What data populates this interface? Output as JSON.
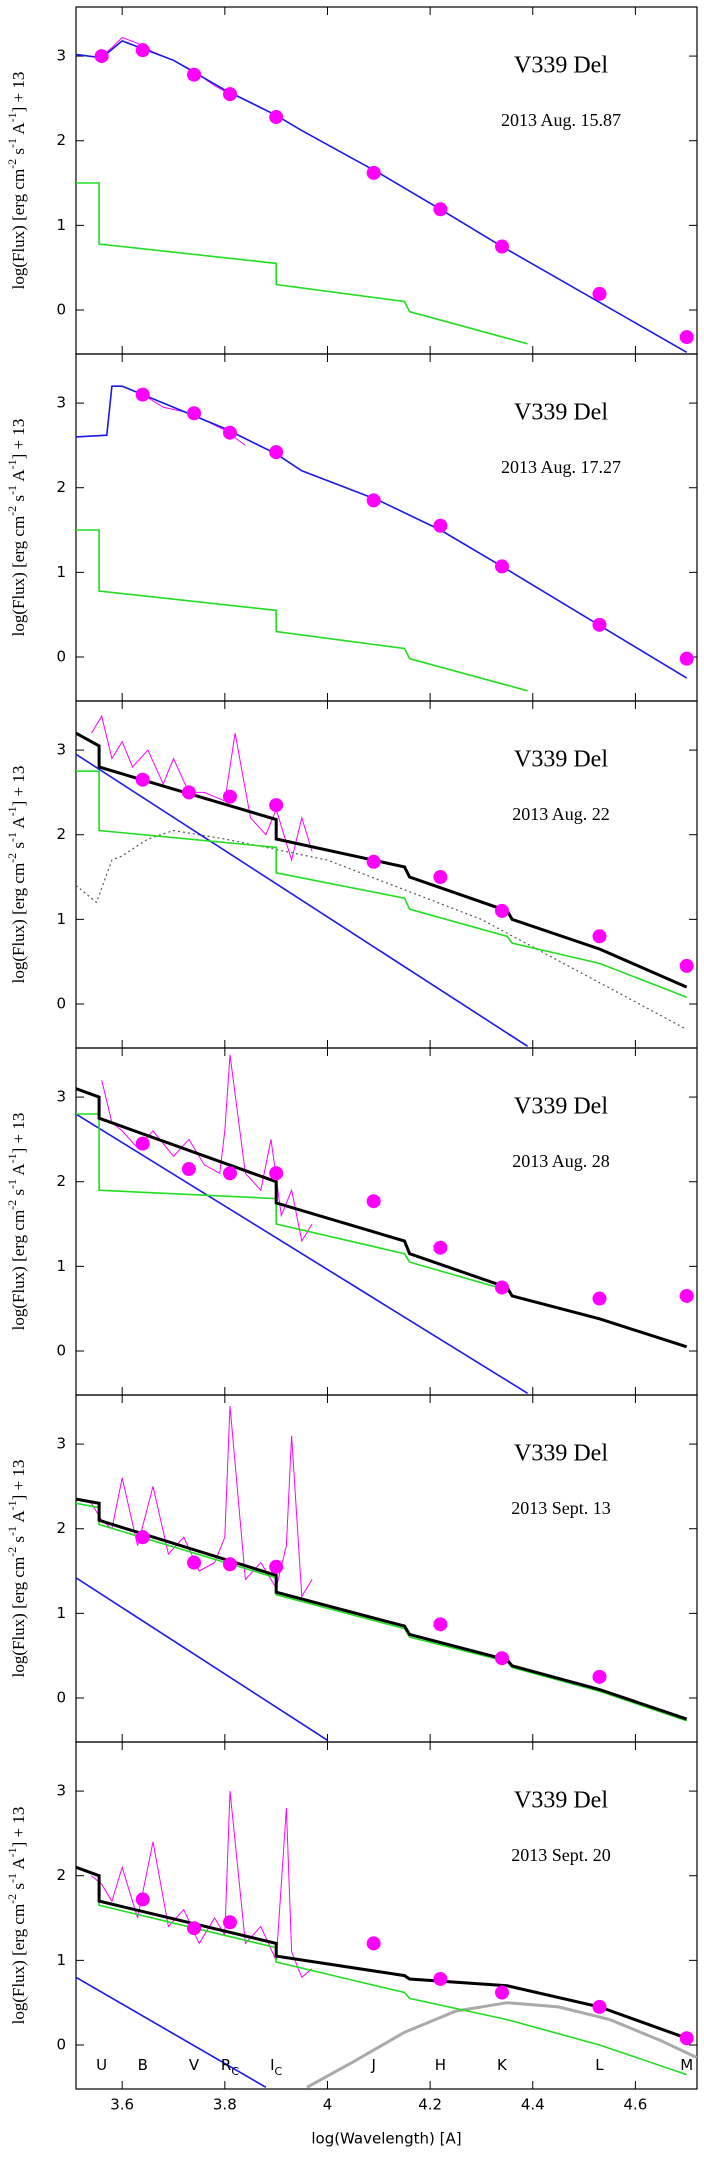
{
  "chart_data": [
    {
      "type": "line",
      "title": "V339 Del",
      "subtitle": "2013 Aug. 15.87",
      "y_label": [
        "log(Flux) [erg cm",
        "-2",
        " s",
        "-1",
        " A",
        "-1",
        "] + 13"
      ],
      "xlim": [
        3.51,
        4.72
      ],
      "xticks": [
        3.6,
        3.8,
        4,
        4.2,
        4.4,
        4.6
      ],
      "ylim": [
        -0.52,
        3.58
      ],
      "yticks": [
        0,
        1,
        2,
        3
      ],
      "series": [
        {
          "color": "#ff00ff",
          "style": "thin",
          "x": [
            3.56,
            3.58,
            3.6,
            3.63,
            3.66,
            3.7,
            3.74,
            3.78,
            3.81
          ],
          "values": [
            3.0,
            3.1,
            3.22,
            3.15,
            3.05,
            2.95,
            2.82,
            2.65,
            2.55
          ]
        },
        {
          "color": "#1a1ae6",
          "style": "solid",
          "x": [
            3.51,
            3.56,
            3.6,
            3.7,
            3.8,
            3.9,
            3.95,
            4.1,
            4.22,
            4.34,
            4.7
          ],
          "values": [
            3.02,
            2.98,
            3.18,
            2.95,
            2.6,
            2.3,
            2.12,
            1.62,
            1.19,
            0.75,
            -0.5
          ]
        },
        {
          "color": "#22dd22",
          "style": "solid",
          "x": [
            3.51,
            3.555,
            3.555,
            3.9,
            3.9,
            4.15,
            4.16,
            4.39
          ],
          "values": [
            1.5,
            1.5,
            0.78,
            0.55,
            0.3,
            0.1,
            -0.02,
            -0.4
          ]
        },
        {
          "color": "#ff00ff",
          "style": "points",
          "x": [
            3.56,
            3.64,
            3.74,
            3.81,
            3.9,
            4.09,
            4.22,
            4.34,
            4.53,
            4.7
          ],
          "values": [
            3.0,
            3.07,
            2.78,
            2.55,
            2.28,
            1.62,
            1.19,
            0.75,
            0.19,
            -0.32
          ]
        }
      ]
    },
    {
      "type": "line",
      "title": "V339 Del",
      "subtitle": "2013 Aug. 17.27",
      "y_label": [
        "log(Flux) [erg cm",
        "-2",
        " s",
        "-1",
        " A",
        "-1",
        "] + 13"
      ],
      "xlim": [
        3.51,
        4.72
      ],
      "xticks": [
        3.6,
        3.8,
        4,
        4.2,
        4.4,
        4.6
      ],
      "ylim": [
        -0.52,
        3.58
      ],
      "yticks": [
        0,
        1,
        2,
        3
      ],
      "series": [
        {
          "color": "#ff00ff",
          "style": "thin",
          "x": [
            3.6,
            3.64,
            3.68,
            3.72,
            3.76,
            3.8,
            3.84
          ],
          "values": [
            3.2,
            3.1,
            2.95,
            2.9,
            2.8,
            2.68,
            2.5
          ]
        },
        {
          "color": "#1a1ae6",
          "style": "solid",
          "x": [
            3.51,
            3.57,
            3.58,
            3.6,
            3.7,
            3.8,
            3.9,
            3.95,
            4.1,
            4.22,
            4.34,
            4.7
          ],
          "values": [
            2.6,
            2.62,
            3.2,
            3.2,
            2.95,
            2.7,
            2.4,
            2.2,
            1.85,
            1.5,
            1.07,
            -0.25
          ]
        },
        {
          "color": "#22dd22",
          "style": "solid",
          "x": [
            3.51,
            3.555,
            3.555,
            3.9,
            3.9,
            4.15,
            4.16,
            4.39
          ],
          "values": [
            1.5,
            1.5,
            0.78,
            0.55,
            0.3,
            0.1,
            -0.02,
            -0.4
          ]
        },
        {
          "color": "#ff00ff",
          "style": "points",
          "x": [
            3.64,
            3.74,
            3.81,
            3.9,
            4.09,
            4.22,
            4.34,
            4.53,
            4.7
          ],
          "values": [
            3.1,
            2.88,
            2.65,
            2.42,
            1.85,
            1.55,
            1.07,
            0.38,
            -0.02
          ]
        }
      ]
    },
    {
      "type": "line",
      "title": "V339 Del",
      "subtitle": "2013 Aug. 22",
      "y_label": [
        "log(Flux) [erg cm",
        "-2",
        " s",
        "-1",
        " A",
        "-1",
        "] + 13"
      ],
      "xlim": [
        3.51,
        4.72
      ],
      "xticks": [
        3.6,
        3.8,
        4,
        4.2,
        4.4,
        4.6
      ],
      "ylim": [
        -0.52,
        3.58
      ],
      "yticks": [
        0,
        1,
        2,
        3
      ],
      "series": [
        {
          "color": "#555555",
          "style": "dotted",
          "x": [
            3.51,
            3.55,
            3.58,
            3.6,
            3.65,
            3.7,
            3.8,
            4.0,
            4.3,
            4.7
          ],
          "values": [
            1.4,
            1.2,
            1.7,
            1.75,
            1.95,
            2.05,
            1.95,
            1.7,
            1.0,
            -0.3
          ]
        },
        {
          "color": "#ff00ff",
          "style": "thin",
          "x": [
            3.54,
            3.56,
            3.58,
            3.6,
            3.62,
            3.65,
            3.68,
            3.7,
            3.73,
            3.76,
            3.8,
            3.82,
            3.85,
            3.88,
            3.9,
            3.93,
            3.95,
            3.97
          ],
          "values": [
            3.2,
            3.4,
            2.9,
            3.1,
            2.8,
            3.0,
            2.6,
            2.9,
            2.5,
            2.5,
            2.4,
            3.2,
            2.2,
            2.0,
            2.3,
            1.7,
            2.2,
            1.8
          ]
        },
        {
          "color": "#1a1ae6",
          "style": "solid",
          "x": [
            3.51,
            4.39
          ],
          "values": [
            2.95,
            -0.5
          ]
        },
        {
          "color": "#22dd22",
          "style": "solid",
          "x": [
            3.51,
            3.555,
            3.555,
            3.9,
            3.9,
            4.15,
            4.16,
            4.35,
            4.36,
            4.53,
            4.7
          ],
          "values": [
            2.75,
            2.75,
            2.05,
            1.85,
            1.55,
            1.25,
            1.12,
            0.8,
            0.72,
            0.48,
            0.08
          ]
        },
        {
          "color": "#000000",
          "style": "thick",
          "x": [
            3.51,
            3.555,
            3.555,
            3.9,
            3.9,
            4.15,
            4.16,
            4.35,
            4.36,
            4.53,
            4.7
          ],
          "values": [
            3.2,
            3.05,
            2.8,
            2.18,
            1.95,
            1.62,
            1.5,
            1.1,
            1.0,
            0.65,
            0.2
          ]
        },
        {
          "color": "#ff00ff",
          "style": "points",
          "x": [
            3.64,
            3.73,
            3.81,
            3.9,
            4.09,
            4.22,
            4.34,
            4.53,
            4.7
          ],
          "values": [
            2.65,
            2.5,
            2.45,
            2.35,
            1.68,
            1.5,
            1.1,
            0.8,
            0.45
          ]
        }
      ]
    },
    {
      "type": "line",
      "title": "V339 Del",
      "subtitle": "2013 Aug. 28",
      "y_label": [
        "log(Flux) [erg cm",
        "-2",
        " s",
        "-1",
        " A",
        "-1",
        "] + 13"
      ],
      "xlim": [
        3.51,
        4.72
      ],
      "xticks": [
        3.6,
        3.8,
        4,
        4.2,
        4.4,
        4.6
      ],
      "ylim": [
        -0.52,
        3.58
      ],
      "yticks": [
        0,
        1,
        2,
        3
      ],
      "series": [
        {
          "color": "#ff00ff",
          "style": "thin",
          "x": [
            3.56,
            3.58,
            3.6,
            3.63,
            3.66,
            3.7,
            3.73,
            3.76,
            3.79,
            3.8,
            3.81,
            3.84,
            3.87,
            3.89,
            3.91,
            3.93,
            3.95,
            3.97
          ],
          "values": [
            3.2,
            2.7,
            2.6,
            2.4,
            2.6,
            2.3,
            2.5,
            2.2,
            2.1,
            2.6,
            3.5,
            2.1,
            1.9,
            2.5,
            1.6,
            1.9,
            1.3,
            1.5
          ]
        },
        {
          "color": "#1a1ae6",
          "style": "solid",
          "x": [
            3.51,
            4.39
          ],
          "values": [
            2.8,
            -0.5
          ]
        },
        {
          "color": "#22dd22",
          "style": "solid",
          "x": [
            3.51,
            3.555,
            3.555,
            3.9,
            3.9,
            4.15,
            4.16,
            4.35,
            4.36,
            4.53,
            4.7
          ],
          "values": [
            2.8,
            2.8,
            1.9,
            1.8,
            1.5,
            1.15,
            1.05,
            0.72,
            0.65,
            0.38,
            0.05
          ]
        },
        {
          "color": "#000000",
          "style": "thick",
          "x": [
            3.51,
            3.555,
            3.555,
            3.9,
            3.9,
            4.15,
            4.16,
            4.35,
            4.36,
            4.53,
            4.7
          ],
          "values": [
            3.1,
            3.0,
            2.75,
            2.0,
            1.75,
            1.3,
            1.15,
            0.75,
            0.65,
            0.38,
            0.05
          ]
        },
        {
          "color": "#ff00ff",
          "style": "points",
          "x": [
            3.64,
            3.73,
            3.81,
            3.9,
            4.09,
            4.22,
            4.34,
            4.53,
            4.7
          ],
          "values": [
            2.45,
            2.15,
            2.1,
            2.1,
            1.77,
            1.22,
            0.75,
            0.62,
            0.65
          ]
        }
      ]
    },
    {
      "type": "line",
      "title": "V339 Del",
      "subtitle": "2013 Sept. 13",
      "y_label": [
        "log(Flux) [erg cm",
        "-2",
        " s",
        "-1",
        " A",
        "-1",
        "] + 13"
      ],
      "xlim": [
        3.51,
        4.72
      ],
      "xticks": [
        3.6,
        3.8,
        4,
        4.2,
        4.4,
        4.6
      ],
      "ylim": [
        -0.52,
        3.58
      ],
      "yticks": [
        0,
        1,
        2,
        3
      ],
      "series": [
        {
          "color": "#ff00ff",
          "style": "thin",
          "x": [
            3.51,
            3.54,
            3.56,
            3.58,
            3.6,
            3.63,
            3.66,
            3.69,
            3.72,
            3.75,
            3.78,
            3.8,
            3.81,
            3.84,
            3.87,
            3.9,
            3.92,
            3.93,
            3.95,
            3.97
          ],
          "values": [
            2.35,
            2.3,
            2.1,
            2.0,
            2.6,
            1.8,
            2.5,
            1.7,
            1.9,
            1.5,
            1.6,
            1.9,
            3.45,
            1.4,
            1.6,
            1.3,
            1.8,
            3.1,
            1.2,
            1.4
          ]
        },
        {
          "color": "#1a1ae6",
          "style": "solid",
          "x": [
            3.51,
            4.0
          ],
          "values": [
            1.42,
            -0.5
          ]
        },
        {
          "color": "#22dd22",
          "style": "solid",
          "x": [
            3.51,
            3.555,
            3.555,
            3.9,
            3.9,
            4.15,
            4.16,
            4.35,
            4.36,
            4.53,
            4.7
          ],
          "values": [
            2.3,
            2.25,
            2.05,
            1.42,
            1.22,
            0.82,
            0.72,
            0.43,
            0.36,
            0.08,
            -0.27
          ]
        },
        {
          "color": "#000000",
          "style": "thick",
          "x": [
            3.51,
            3.555,
            3.555,
            3.9,
            3.9,
            4.15,
            4.16,
            4.35,
            4.36,
            4.53,
            4.7
          ],
          "values": [
            2.35,
            2.3,
            2.1,
            1.45,
            1.25,
            0.85,
            0.75,
            0.45,
            0.38,
            0.1,
            -0.25
          ]
        },
        {
          "color": "#ff00ff",
          "style": "points",
          "x": [
            3.64,
            3.74,
            3.81,
            3.9,
            4.22,
            4.34,
            4.53
          ],
          "values": [
            1.9,
            1.6,
            1.58,
            1.55,
            0.87,
            0.47,
            0.25
          ]
        }
      ]
    },
    {
      "type": "line",
      "title": "V339 Del",
      "subtitle": "2013 Sept. 20",
      "y_label": [
        "log(Flux) [erg cm",
        "-2",
        " s",
        "-1",
        " A",
        "-1",
        "] + 13"
      ],
      "xlim": [
        3.51,
        4.72
      ],
      "xticks": [
        3.6,
        3.8,
        4,
        4.2,
        4.4,
        4.6
      ],
      "ylim": [
        -0.52,
        3.58
      ],
      "yticks": [
        0,
        1,
        2,
        3
      ],
      "x_label": "log(Wavelength) [A]",
      "bands": [
        {
          "label": "U",
          "x": 3.56
        },
        {
          "label": "B",
          "x": 3.64
        },
        {
          "label": "V",
          "x": 3.74
        },
        {
          "label": "R",
          "sub": "C",
          "x": 3.81
        },
        {
          "label": "I",
          "sub": "C",
          "x": 3.9
        },
        {
          "label": "J",
          "x": 4.09
        },
        {
          "label": "H",
          "x": 4.22
        },
        {
          "label": "K",
          "x": 4.34
        },
        {
          "label": "L",
          "x": 4.53
        },
        {
          "label": "M",
          "x": 4.7
        }
      ],
      "series": [
        {
          "color": "#aaaaaa",
          "style": "thick",
          "x": [
            3.96,
            4.05,
            4.15,
            4.25,
            4.35,
            4.45,
            4.55,
            4.65,
            4.72
          ],
          "values": [
            -0.5,
            -0.2,
            0.15,
            0.4,
            0.5,
            0.45,
            0.3,
            0.05,
            -0.15
          ]
        },
        {
          "color": "#ff00ff",
          "style": "thin",
          "x": [
            3.54,
            3.56,
            3.58,
            3.6,
            3.63,
            3.66,
            3.69,
            3.72,
            3.75,
            3.78,
            3.8,
            3.81,
            3.84,
            3.87,
            3.9,
            3.92,
            3.93,
            3.95,
            3.97
          ],
          "values": [
            2.0,
            1.9,
            1.7,
            2.1,
            1.5,
            2.4,
            1.4,
            1.6,
            1.2,
            1.5,
            1.3,
            3.0,
            1.2,
            1.4,
            1.0,
            2.8,
            1.1,
            0.8,
            0.9
          ]
        },
        {
          "color": "#1a1ae6",
          "style": "solid",
          "x": [
            3.51,
            3.88
          ],
          "values": [
            0.8,
            -0.5
          ]
        },
        {
          "color": "#22dd22",
          "style": "solid",
          "x": [
            3.51,
            3.555,
            3.555,
            3.9,
            3.9,
            4.15,
            4.16,
            4.35,
            4.53,
            4.7
          ],
          "values": [
            2.1,
            2.0,
            1.65,
            1.15,
            0.98,
            0.62,
            0.55,
            0.3,
            0.0,
            -0.35
          ]
        },
        {
          "color": "#000000",
          "style": "thick",
          "x": [
            3.51,
            3.555,
            3.555,
            3.9,
            3.9,
            4.15,
            4.16,
            4.35,
            4.53,
            4.7
          ],
          "values": [
            2.1,
            2.0,
            1.7,
            1.2,
            1.05,
            0.82,
            0.78,
            0.7,
            0.45,
            0.08
          ]
        },
        {
          "color": "#ff00ff",
          "style": "points",
          "x": [
            3.64,
            3.74,
            3.81,
            4.09,
            4.22,
            4.34,
            4.53,
            4.7
          ],
          "values": [
            1.72,
            1.38,
            1.45,
            1.2,
            0.78,
            0.62,
            0.45,
            0.08
          ]
        }
      ]
    }
  ]
}
